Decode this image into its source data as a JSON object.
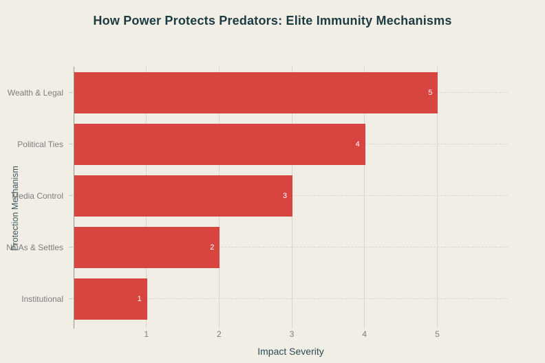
{
  "title": "How Power Protects Predators: Elite Immunity Mechanisms",
  "chart_data": {
    "type": "bar",
    "orientation": "horizontal",
    "title": "How Power Protects Predators: Elite Immunity Mechanisms",
    "categories": [
      "Wealth & Legal",
      "Political Ties",
      "Media Control",
      "NDAs & Settles",
      "Institutional"
    ],
    "values": [
      5,
      4,
      3,
      2,
      1
    ],
    "bar_value_labels": [
      "5",
      "4",
      "3",
      "2",
      "1"
    ],
    "xlabel": "Impact Severity",
    "ylabel": "Protection Mechanism",
    "x_ticks": [
      1,
      2,
      3,
      4,
      5
    ],
    "xlim": [
      0,
      5.97
    ],
    "grid": true,
    "legend": "none",
    "bar_color": "#d8443f",
    "bar_label_color": "#ffffff"
  },
  "colors": {
    "background": "#f1eee5",
    "bar": "#d8443f",
    "title_text": "#1c3b43",
    "axis_title_text": "#2c4a52",
    "tick_text": "#7d7d7d",
    "gridline": "#d9d6c9",
    "axis_line": "#97948b"
  }
}
